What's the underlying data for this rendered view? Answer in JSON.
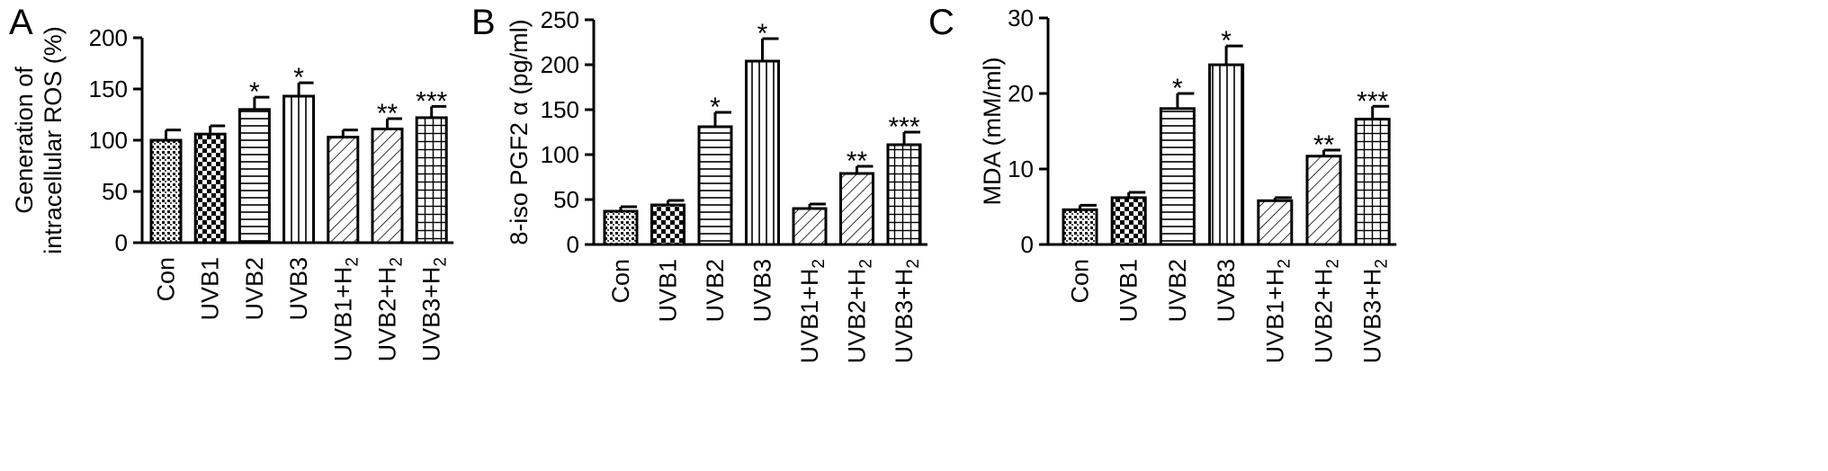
{
  "chart_data": [
    {
      "type": "bar",
      "panel": "A",
      "ylabel": [
        "Generation of",
        "intracellular ROS (%)"
      ],
      "ylim": [
        0,
        200
      ],
      "yticks": [
        0,
        50,
        100,
        150,
        200
      ],
      "categories": [
        "Con",
        "UVB1",
        "UVB2",
        "UVB3",
        "UVB1+H2",
        "UVB2+H2",
        "UVB3+H2"
      ],
      "values": [
        100,
        106,
        130,
        143,
        103,
        111,
        122
      ],
      "errors": [
        10,
        8,
        12,
        13,
        7,
        10,
        11
      ],
      "significance": [
        "",
        "",
        "*",
        "*",
        "",
        "**",
        "***"
      ],
      "patterns": [
        "dots",
        "checker",
        "hlines",
        "vlines",
        "diag",
        "diag",
        "grid"
      ]
    },
    {
      "type": "bar",
      "panel": "B",
      "ylabel": [
        "8-iso PGF2 α (pg/ml)"
      ],
      "ylim": [
        0,
        250
      ],
      "yticks": [
        0,
        50,
        100,
        150,
        200,
        250
      ],
      "categories": [
        "Con",
        "UVB1",
        "UVB2",
        "UVB3",
        "UVB1+H2",
        "UVB2+H2",
        "UVB3+H2"
      ],
      "values": [
        37,
        44,
        131,
        204,
        40,
        79,
        111
      ],
      "errors": [
        5,
        5,
        16,
        25,
        5,
        8,
        14
      ],
      "significance": [
        "",
        "",
        "*",
        "*",
        "",
        "**",
        "***"
      ],
      "patterns": [
        "dots",
        "checker",
        "hlines",
        "vlines",
        "diag",
        "diag",
        "grid"
      ]
    },
    {
      "type": "bar",
      "panel": "C",
      "ylabel": [
        "MDA (mM/ml)"
      ],
      "ylim": [
        0,
        30
      ],
      "yticks": [
        0,
        10,
        20,
        30
      ],
      "categories": [
        "Con",
        "UVB1",
        "UVB2",
        "UVB3",
        "UVB1+H2",
        "UVB2+H2",
        "UVB3+H2"
      ],
      "values": [
        4.6,
        6.2,
        18.0,
        23.8,
        5.8,
        11.7,
        16.6
      ],
      "errors": [
        0.6,
        0.7,
        2.0,
        2.5,
        0.4,
        0.8,
        1.7
      ],
      "significance": [
        "",
        "",
        "*",
        "*",
        "",
        "**",
        "***"
      ],
      "patterns": [
        "dots",
        "checker",
        "hlines",
        "vlines",
        "diag",
        "diag",
        "grid"
      ]
    }
  ]
}
